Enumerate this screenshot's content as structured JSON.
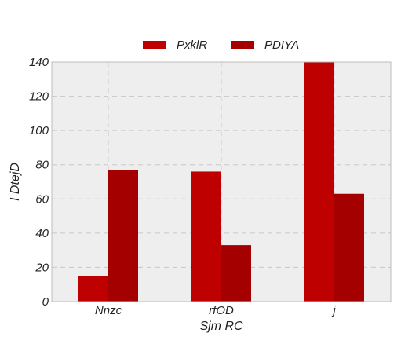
{
  "chart_data": {
    "type": "bar",
    "categories": [
      "Nnzc",
      "rfOD",
      "j"
    ],
    "series": [
      {
        "name": "PxklR",
        "values": [
          15,
          76,
          140
        ],
        "color": "#bf0000"
      },
      {
        "name": "PDIYA",
        "values": [
          77,
          33,
          63
        ],
        "color": "#a50000"
      }
    ],
    "xlabel": "Sjm RC",
    "ylabel": "I  DtejD",
    "ylim": [
      0,
      140
    ],
    "yticks": [
      0,
      20,
      40,
      60,
      80,
      100,
      120,
      140
    ],
    "grid": true,
    "legend": "top-center",
    "background": "#eeeeee"
  }
}
